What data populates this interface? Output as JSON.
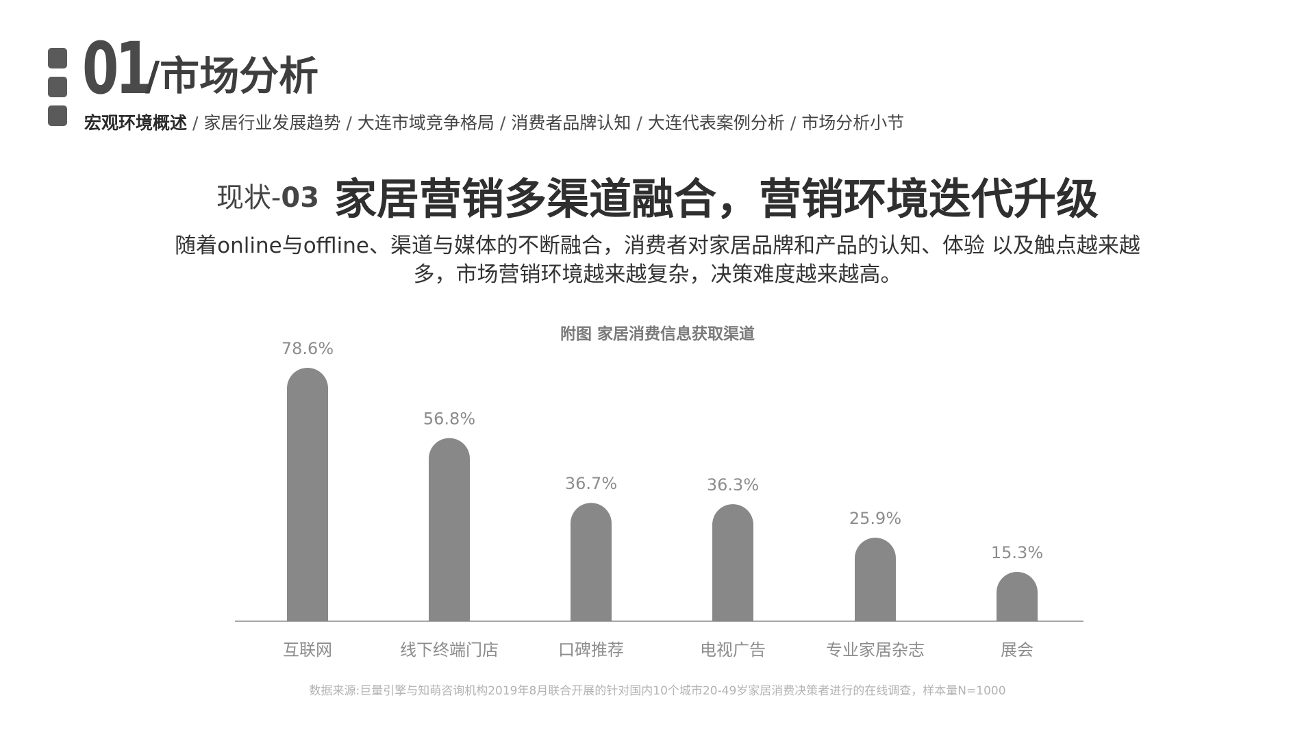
{
  "section": {
    "number": "01",
    "title": "/市场分析"
  },
  "breadcrumb": {
    "items": [
      "宏观环境概述",
      "家居行业发展趋势",
      "大连市域竞争格局",
      "消费者品牌认知",
      "大连代表案例分析",
      "市场分析小节"
    ],
    "separator": "/"
  },
  "headline": {
    "prefix_text": "现状-",
    "prefix_num": "03",
    "main": "家居营销多渠道融合，营销环境迭代升级"
  },
  "description": "随着online与offline、渠道与媒体的不断融合，消费者对家居品牌和产品的认知、体验 以及触点越来越多，市场营销环境越来越复杂，决策难度越来越高。",
  "chart_data": {
    "type": "bar",
    "title": "附图 家居消费信息获取渠道",
    "categories": [
      "互联网",
      "线下终端门店",
      "口碑推荐",
      "电视广告",
      "专业家居杂志",
      "展会"
    ],
    "values": [
      78.6,
      56.8,
      36.7,
      36.3,
      25.9,
      15.3
    ],
    "value_labels": [
      "78.6%",
      "56.8%",
      "36.7%",
      "36.3%",
      "25.9%",
      "15.3%"
    ],
    "unit": "%",
    "ylim": [
      0,
      80
    ],
    "grid": false,
    "legend": "none",
    "bar_color": "#888888",
    "axis_color": "#a6a6a6"
  },
  "source": "数据来源:巨量引擎与知萌咨询机构2019年8月联合开展的针对国内10个城市20-49岁家居消费决策者进行的在线调查，样本量N=1000",
  "colors": {
    "accent": "#4a4a4a",
    "bar": "#888888",
    "muted_text": "#7a7a7a"
  }
}
